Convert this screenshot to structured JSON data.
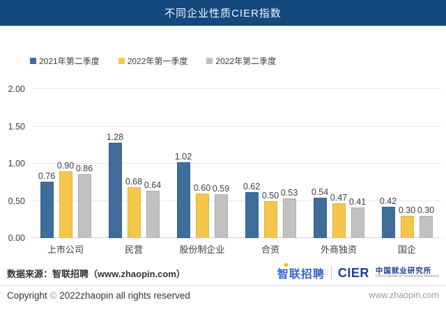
{
  "header": {
    "title": "不同企业性质CIER指数"
  },
  "chart_data": {
    "type": "bar",
    "title": "不同企业性质CIER指数",
    "categories": [
      "上市公司",
      "民营",
      "股份制企业",
      "合资",
      "外商独资",
      "国企"
    ],
    "series": [
      {
        "name": "2021年第二季度",
        "color": "#3e6d9c",
        "values": [
          0.76,
          1.28,
          1.02,
          0.62,
          0.54,
          0.42
        ]
      },
      {
        "name": "2022年第一季度",
        "color": "#f6c64b",
        "values": [
          0.9,
          0.68,
          0.6,
          0.5,
          0.47,
          0.3
        ]
      },
      {
        "name": "2022年第二季度",
        "color": "#c1c1c1",
        "values": [
          0.86,
          0.64,
          0.59,
          0.53,
          0.41,
          0.3
        ]
      }
    ],
    "xlabel": "",
    "ylabel": "",
    "ylim": [
      0,
      2.0
    ],
    "yticks": [
      "0.00",
      "0.50",
      "1.00",
      "1.50",
      "2.00"
    ],
    "grid": true,
    "legend_position": "top-left",
    "value_labels": true,
    "value_label_format": "0.00"
  },
  "footer": {
    "source": "数据来源：智联招聘（www.zhaopin.com）",
    "copyright_prefix": "Copyright",
    "copyright_symbol": "©",
    "copyright_suffix": "2022zhaopin all rights reserved",
    "website": "www.zhaopin.com",
    "logo": {
      "zhaopin": "智联招聘",
      "cier": "CIER",
      "institute_cn": "中国就业研究所",
      "institute_en": "China Institute for Employment Research"
    }
  },
  "colors": {
    "header_bg": "#14497e",
    "header_text": "#f4f7fa",
    "zhaopin_blue": "#2f66d0",
    "zhaopin_yellow": "#f5b800",
    "cier_navy": "#1e3d8f",
    "gridline": "#e7e7e7"
  }
}
